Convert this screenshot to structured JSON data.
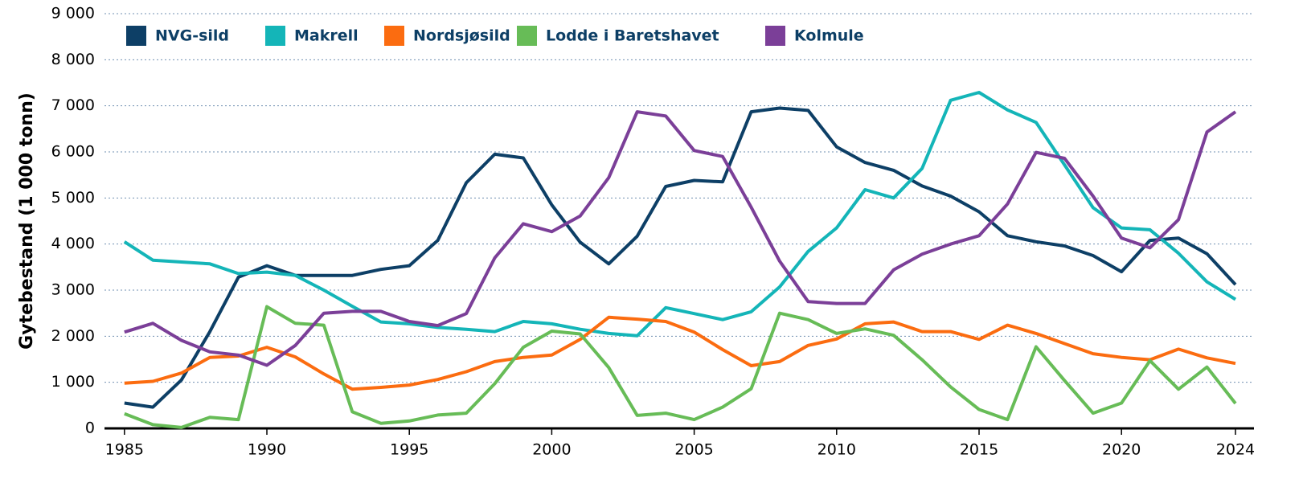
{
  "chart_data": {
    "type": "line",
    "y_label": "Gytebestand (1 000 tonn)",
    "x": [
      1985,
      1986,
      1987,
      1988,
      1989,
      1990,
      1991,
      1992,
      1993,
      1994,
      1995,
      1996,
      1997,
      1998,
      1999,
      2000,
      2001,
      2002,
      2003,
      2004,
      2005,
      2006,
      2007,
      2008,
      2009,
      2010,
      2011,
      2012,
      2013,
      2014,
      2015,
      2016,
      2017,
      2018,
      2019,
      2020,
      2021,
      2022,
      2023,
      2024
    ],
    "series": [
      {
        "name": "NVG-sild",
        "color": "#0d3f66",
        "values": [
          550,
          460,
          1050,
          2100,
          3280,
          3530,
          3320,
          3320,
          3320,
          3450,
          3530,
          4080,
          5330,
          5950,
          5870,
          4850,
          4040,
          3570,
          4170,
          5250,
          5380,
          5350,
          6870,
          6950,
          6900,
          6110,
          5770,
          5600,
          5260,
          5040,
          4700,
          4180,
          4050,
          3960,
          3750,
          3400,
          4080,
          4130,
          3790,
          3120
        ]
      },
      {
        "name": "Makrell",
        "color": "#14b5b8",
        "values": [
          4050,
          3650,
          3610,
          3570,
          3360,
          3390,
          3320,
          3000,
          2650,
          2310,
          2270,
          2190,
          2150,
          2100,
          2320,
          2270,
          2150,
          2060,
          2010,
          2620,
          2490,
          2360,
          2530,
          3070,
          3840,
          4350,
          5180,
          5000,
          5640,
          7120,
          7290,
          6910,
          6640,
          5720,
          4790,
          4350,
          4310,
          3800,
          3180,
          2800
        ]
      },
      {
        "name": "Nordsjøsild",
        "color": "#fb6c10",
        "values": [
          980,
          1020,
          1200,
          1540,
          1570,
          1760,
          1550,
          1180,
          850,
          890,
          940,
          1060,
          1230,
          1450,
          1540,
          1590,
          1930,
          2410,
          2370,
          2320,
          2090,
          1710,
          1360,
          1450,
          1800,
          1940,
          2270,
          2310,
          2100,
          2100,
          1930,
          2240,
          2060,
          1840,
          1620,
          1540,
          1490,
          1720,
          1530,
          1410
        ]
      },
      {
        "name": "Lodde i Baretshavet",
        "color": "#67bc57",
        "values": [
          320,
          80,
          20,
          240,
          190,
          2640,
          2280,
          2240,
          360,
          110,
          160,
          290,
          330,
          970,
          1760,
          2110,
          2050,
          1320,
          280,
          330,
          190,
          460,
          860,
          2500,
          2360,
          2060,
          2160,
          2020,
          1490,
          900,
          410,
          190,
          1770,
          1040,
          330,
          550,
          1470,
          850,
          1330,
          540
        ]
      },
      {
        "name": "Kolmule",
        "color": "#7b3f98",
        "values": [
          2090,
          2280,
          1910,
          1660,
          1590,
          1370,
          1800,
          2500,
          2540,
          2540,
          2320,
          2230,
          2490,
          3700,
          4440,
          4270,
          4610,
          5440,
          6870,
          6780,
          6030,
          5900,
          4800,
          3630,
          2750,
          2710,
          2710,
          3440,
          3780,
          4000,
          4180,
          4870,
          5990,
          5860,
          5040,
          4130,
          3920,
          4530,
          6430,
          6870
        ]
      }
    ],
    "xlim": [
      1984.3,
      2024.65
    ],
    "xticks": [
      1985,
      1990,
      1995,
      2000,
      2005,
      2010,
      2015,
      2020,
      2024
    ],
    "ylim": [
      0,
      9000
    ],
    "yticks": [
      0,
      {
        "value": 1000,
        "label": "1 000"
      },
      {
        "value": 2000,
        "label": "2 000"
      },
      {
        "value": 3000,
        "label": "3 000"
      },
      {
        "value": 4000,
        "label": "4 000"
      },
      {
        "value": 5000,
        "label": "5 000"
      },
      {
        "value": 6000,
        "label": "6 000"
      },
      {
        "value": 7000,
        "label": "7 000"
      },
      {
        "value": 8000,
        "label": "8 000"
      },
      {
        "value": 9000,
        "label": "9 000"
      }
    ],
    "grid": true,
    "legend": "top-left"
  }
}
